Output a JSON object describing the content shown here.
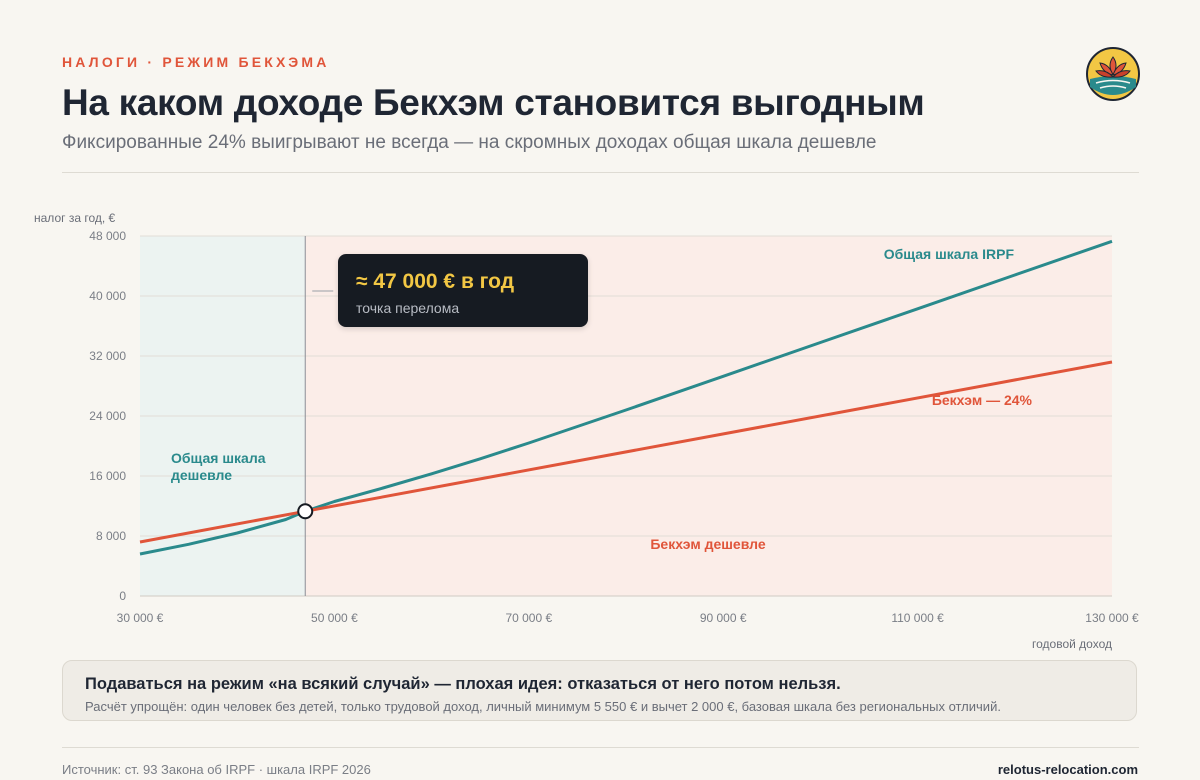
{
  "header": {
    "eyebrow": "НАЛОГИ · РЕЖИМ БЕКХЭМА",
    "title": "На каком доходе Бекхэм становится выгодным",
    "subtitle": "Фиксированные 24% выигрывают не всегда — на скромных доходах общая шкала дешевле"
  },
  "logo": {
    "icon": "lotus-icon",
    "colors": [
      "#f2c744",
      "#e0553a",
      "#2a8a8c",
      "#1f2633"
    ]
  },
  "colors": {
    "irpf": "#2a8a8c",
    "beckham": "#e0553a",
    "region_irpf": "#ecf3f1",
    "region_beckham": "#fbede8",
    "callout_bg": "#161b22",
    "callout_value": "#f2c744"
  },
  "chart_data": {
    "type": "line",
    "xlabel": "годовой доход",
    "ylabel": "налог за год, €",
    "xlim": [
      30000,
      130000
    ],
    "ylim": [
      0,
      48000
    ],
    "x_ticks": [
      30000,
      50000,
      70000,
      90000,
      110000,
      130000
    ],
    "x_tick_labels": [
      "30 000 €",
      "50 000 €",
      "70 000 €",
      "90 000 €",
      "110 000 €",
      "130 000 €"
    ],
    "y_ticks": [
      0,
      8000,
      16000,
      24000,
      32000,
      40000,
      48000
    ],
    "y_tick_labels": [
      "0",
      "8 000",
      "16 000",
      "24 000",
      "32 000",
      "40 000",
      "48 000"
    ],
    "grid": true,
    "series": [
      {
        "name": "Общая шкала IRPF",
        "color": "#2a8a8c",
        "x": [
          30000,
          35000,
          40000,
          45000,
          47000,
          50000,
          55000,
          60000,
          65000,
          70000,
          80000,
          90000,
          100000,
          110000,
          120000,
          130000
        ],
        "y": [
          5600,
          6900,
          8400,
          10200,
          11300,
          12600,
          14400,
          16300,
          18300,
          20400,
          24800,
          29300,
          33800,
          38300,
          42800,
          47300
        ]
      },
      {
        "name": "Бекхэм — 24%",
        "color": "#e0553a",
        "x": [
          30000,
          47000,
          130000
        ],
        "y": [
          7200,
          11300,
          31200
        ]
      }
    ],
    "crossover": {
      "x": 47000,
      "y": 11300,
      "value_label": "≈ 47 000 € в год",
      "label": "точка перелома"
    },
    "regions": [
      {
        "label": "Общая шкала дешевле",
        "from": 30000,
        "to": 47000
      },
      {
        "label": "Бекхэм дешевле",
        "from": 47000,
        "to": 130000
      }
    ]
  },
  "note": {
    "main": "Подаваться на режим «на всякий случай» — плохая идея: отказаться от него потом нельзя.",
    "sub": "Расчёт упрощён: один человек без детей, только трудовой доход, личный минимум 5 550 € и вычет 2 000 €, базовая шкала без региональных отличий."
  },
  "footer": {
    "source": "Источник: ст. 93 Закона об IRPF · шкала IRPF 2026",
    "site": "relotus-relocation.com"
  }
}
